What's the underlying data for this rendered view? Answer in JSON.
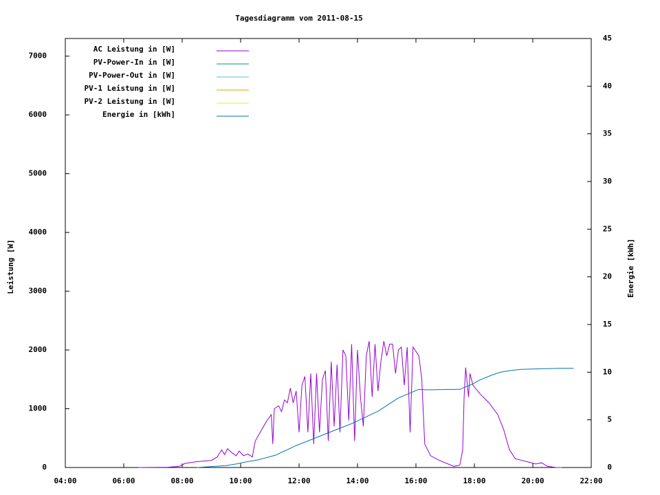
{
  "chart_data": {
    "type": "line",
    "title": "Tagesdiagramm vom 2011-08-15",
    "ylabel": "Leistung [W]",
    "y2label": "Energie [kWh]",
    "xlim": [
      4,
      22
    ],
    "xticks": [
      {
        "value": 4,
        "label": "04:00"
      },
      {
        "value": 6,
        "label": "06:00"
      },
      {
        "value": 8,
        "label": "08:00"
      },
      {
        "value": 10,
        "label": "10:00"
      },
      {
        "value": 12,
        "label": "12:00"
      },
      {
        "value": 14,
        "label": "14:00"
      },
      {
        "value": 16,
        "label": "16:00"
      },
      {
        "value": 18,
        "label": "18:00"
      },
      {
        "value": 20,
        "label": "20:00"
      },
      {
        "value": 22,
        "label": "22:00"
      }
    ],
    "ylim": [
      0,
      7300
    ],
    "yticks": [
      0,
      1000,
      2000,
      3000,
      4000,
      5000,
      6000,
      7000
    ],
    "y2lim": [
      0,
      45
    ],
    "y2ticks": [
      0,
      5,
      10,
      15,
      20,
      25,
      30,
      35,
      40,
      45
    ],
    "legend": "top-left",
    "series": [
      {
        "name": "AC Leistung in [W]",
        "color": "#9400d3",
        "x": [
          6.5,
          7.5,
          7.9,
          8.1,
          8.5,
          9.0,
          9.2,
          9.35,
          9.45,
          9.55,
          9.7,
          9.85,
          9.95,
          10.1,
          10.25,
          10.4,
          10.5,
          10.9,
          11.05,
          11.1,
          11.15,
          11.3,
          11.4,
          11.5,
          11.6,
          11.7,
          11.8,
          11.9,
          12.0,
          12.1,
          12.2,
          12.3,
          12.4,
          12.5,
          12.6,
          12.7,
          12.8,
          12.9,
          13.0,
          13.1,
          13.2,
          13.3,
          13.4,
          13.5,
          13.6,
          13.7,
          13.8,
          13.9,
          14.0,
          14.1,
          14.2,
          14.3,
          14.4,
          14.5,
          14.6,
          14.7,
          14.8,
          14.9,
          15.0,
          15.1,
          15.2,
          15.3,
          15.4,
          15.5,
          15.6,
          15.7,
          15.8,
          15.9,
          16.1,
          16.2,
          16.3,
          16.5,
          16.8,
          17.1,
          17.3,
          17.5,
          17.6,
          17.65,
          17.7,
          17.8,
          17.85,
          17.95,
          18.2,
          18.5,
          18.8,
          19.0,
          19.2,
          19.4,
          19.8,
          20.1,
          20.3,
          20.5,
          20.8,
          21.0
        ],
        "values": [
          0,
          5,
          20,
          70,
          100,
          120,
          180,
          300,
          220,
          320,
          250,
          200,
          280,
          200,
          230,
          180,
          450,
          800,
          900,
          400,
          1000,
          1050,
          950,
          1150,
          1100,
          1350,
          1100,
          1300,
          600,
          1400,
          1550,
          600,
          1600,
          400,
          1600,
          600,
          1500,
          1650,
          450,
          1800,
          700,
          1750,
          600,
          2000,
          1900,
          800,
          2100,
          450,
          2000,
          1200,
          700,
          1900,
          2150,
          1200,
          2100,
          1300,
          1800,
          2150,
          1900,
          2100,
          2100,
          1600,
          2000,
          2050,
          1400,
          2050,
          600,
          2050,
          1900,
          1500,
          400,
          200,
          120,
          60,
          20,
          40,
          300,
          1200,
          1700,
          1200,
          1600,
          1400,
          1250,
          1100,
          900,
          650,
          300,
          150,
          100,
          60,
          80,
          20,
          0,
          0
        ]
      },
      {
        "name": "PV-Power-In in [W]",
        "color": "#009e73"
      },
      {
        "name": "PV-Power-Out in [W]",
        "color": "#56b4e9"
      },
      {
        "name": "PV-1 Leistung in [W]",
        "color": "#e69f00"
      },
      {
        "name": "PV-2 Leistung in [W]",
        "color": "#f0e442"
      },
      {
        "name": "Energie in [kWh]",
        "color": "#0072b2",
        "axis": "y2",
        "x": [
          8.5,
          9.5,
          9.9,
          10.2,
          10.6,
          11.2,
          11.9,
          12.8,
          13.8,
          14.7,
          15.4,
          16.1,
          16.35,
          17.5,
          17.9,
          18.2,
          18.6,
          18.9,
          19.3,
          19.6,
          20.2,
          20.9,
          21.4
        ],
        "values": [
          0,
          0.2,
          0.4,
          0.6,
          0.8,
          1.3,
          2.3,
          3.4,
          4.6,
          5.9,
          7.3,
          8.2,
          8.15,
          8.2,
          8.7,
          9.2,
          9.7,
          10.0,
          10.2,
          10.3,
          10.35,
          10.4,
          10.4
        ]
      }
    ]
  }
}
